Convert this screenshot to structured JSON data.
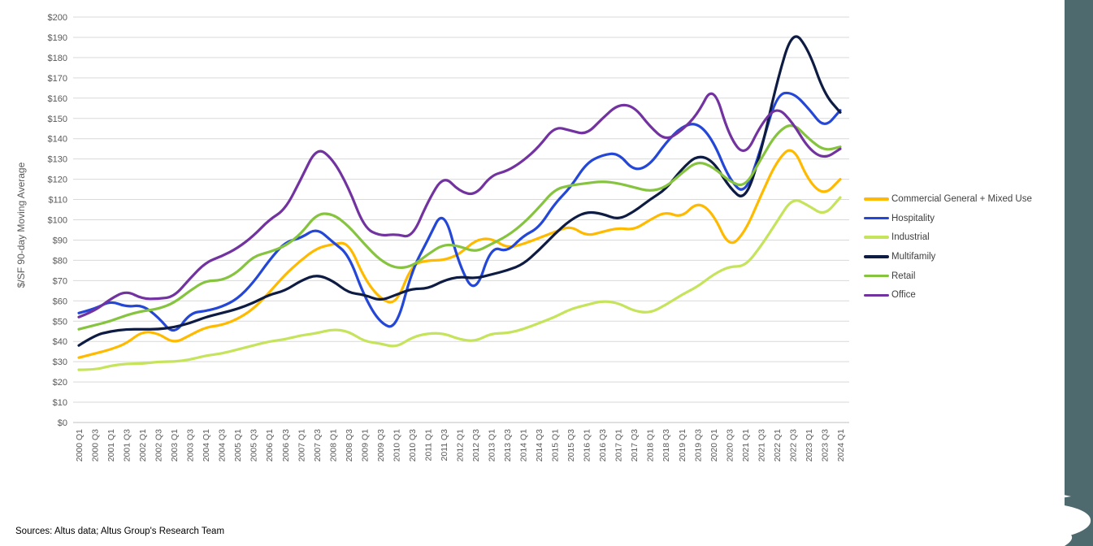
{
  "page": {
    "background": "#FFFFFF",
    "sidebar_color": "#4E6A6E"
  },
  "footer": {
    "source_note": "Sources: Altus data; Altus Group's Research Team"
  },
  "chart_data": {
    "type": "line",
    "title": "",
    "xlabel": "",
    "ylabel": "$/SF 90-day Moving Average",
    "ylim": [
      0,
      200
    ],
    "ytick_step": 10,
    "ytick_prefix": "$",
    "grid": "horizontal",
    "legend_position": "right",
    "x_tick_rotation": 90,
    "categories": [
      "2000 Q1",
      "2000 Q3",
      "2001 Q1",
      "2001 Q3",
      "2002 Q1",
      "2002 Q3",
      "2003 Q1",
      "2003 Q3",
      "2004 Q1",
      "2004 Q3",
      "2005 Q1",
      "2005 Q3",
      "2006 Q1",
      "2006 Q3",
      "2007 Q1",
      "2007 Q3",
      "2008 Q1",
      "2008 Q3",
      "2009 Q1",
      "2009 Q3",
      "2010 Q1",
      "2010 Q3",
      "2011 Q1",
      "2011 Q3",
      "2012 Q1",
      "2012 Q3",
      "2013 Q1",
      "2013 Q3",
      "2014 Q1",
      "2014 Q3",
      "2015 Q1",
      "2015 Q3",
      "2016 Q1",
      "2016 Q3",
      "2017 Q1",
      "2017 Q3",
      "2018 Q1",
      "2018 Q3",
      "2019 Q1",
      "2019 Q3",
      "2020 Q1",
      "2020 Q3",
      "2021 Q1",
      "2021 Q3",
      "2022 Q1",
      "2022 Q3",
      "2023 Q1",
      "2023 Q3",
      "2024 Q1"
    ],
    "series": [
      {
        "name": "Commercial General + Mixed Use",
        "color": "#FFBA00",
        "values": [
          32,
          34,
          36,
          39,
          45,
          44,
          39,
          43,
          47,
          48,
          51,
          56,
          64,
          73,
          80,
          86,
          88,
          89,
          71,
          61,
          58,
          78,
          80,
          80,
          83,
          90,
          91,
          86,
          88,
          91,
          94,
          97,
          92,
          94,
          96,
          95,
          100,
          104,
          101,
          109,
          103,
          86,
          94,
          112,
          129,
          137,
          119,
          112,
          120
        ]
      },
      {
        "name": "Hospitality",
        "color": "#2447D8",
        "values": [
          54,
          56,
          60,
          57,
          58,
          52,
          43,
          54,
          55,
          57,
          61,
          69,
          80,
          89,
          91,
          96,
          89,
          83,
          62,
          49,
          46,
          75,
          90,
          106,
          77,
          63,
          87,
          84,
          92,
          96,
          108,
          116,
          128,
          132,
          133,
          124,
          127,
          138,
          146,
          148,
          139,
          120,
          112,
          135,
          162,
          163,
          155,
          145,
          154
        ]
      },
      {
        "name": "Industrial",
        "color": "#C5E35B",
        "values": [
          26,
          26,
          28,
          29,
          29,
          30,
          30,
          31,
          33,
          34,
          36,
          38,
          40,
          41,
          43,
          44,
          46,
          45,
          40,
          39,
          37,
          42,
          44,
          44,
          41,
          40,
          44,
          44,
          46,
          49,
          52,
          56,
          58,
          60,
          59,
          55,
          54,
          58,
          63,
          67,
          73,
          77,
          77,
          87,
          99,
          111,
          107,
          102,
          111
        ]
      },
      {
        "name": "Multifamily",
        "color": "#0E1B43",
        "values": [
          38,
          43,
          45,
          46,
          46,
          46,
          47,
          49,
          52,
          54,
          56,
          59,
          63,
          65,
          70,
          73,
          70,
          64,
          63,
          60,
          63,
          66,
          66,
          70,
          72,
          71,
          73,
          75,
          78,
          85,
          93,
          100,
          104,
          103,
          100,
          104,
          110,
          115,
          125,
          132,
          129,
          116,
          109,
          133,
          168,
          194,
          184,
          162,
          153
        ]
      },
      {
        "name": "Retail",
        "color": "#86C440",
        "values": [
          46,
          48,
          50,
          53,
          55,
          56,
          59,
          65,
          70,
          70,
          74,
          82,
          84,
          87,
          93,
          103,
          103,
          97,
          88,
          80,
          76,
          77,
          83,
          88,
          87,
          84,
          88,
          92,
          98,
          106,
          115,
          117,
          118,
          119,
          118,
          116,
          114,
          116,
          123,
          129,
          126,
          119,
          116,
          130,
          143,
          148,
          140,
          134,
          136
        ]
      },
      {
        "name": "Office",
        "color": "#7233A0",
        "values": [
          52,
          55,
          61,
          65,
          61,
          61,
          62,
          71,
          79,
          82,
          86,
          92,
          100,
          105,
          120,
          136,
          130,
          116,
          96,
          92,
          93,
          91,
          109,
          122,
          114,
          112,
          122,
          124,
          129,
          136,
          146,
          144,
          142,
          150,
          157,
          156,
          146,
          139,
          144,
          152,
          167,
          141,
          131,
          147,
          156,
          148,
          135,
          130,
          135
        ]
      }
    ],
    "axis_text_color": "#595959",
    "gridline_color": "#D9D9D9",
    "baseline_color": "#BFBFBF"
  }
}
